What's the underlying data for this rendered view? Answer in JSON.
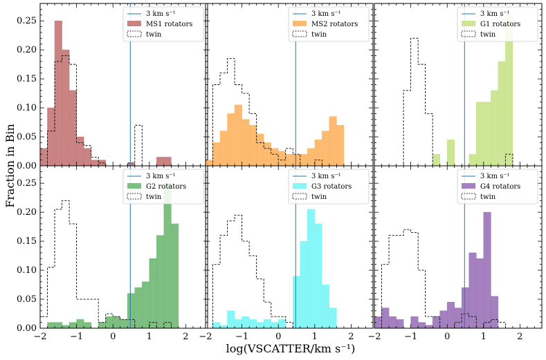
{
  "figure": {
    "xlabel": "log(VSCATTER/km s⁻¹)",
    "ylabel": "Fraction in Bin"
  },
  "chart_data": [
    {
      "type": "bar",
      "title": "",
      "xlim": [
        -2,
        2.6
      ],
      "ylim": [
        0,
        0.28
      ],
      "bin_start": -2.0,
      "bin_width": 0.2,
      "line": {
        "x": 0.477,
        "label": "3 km s⁻¹",
        "color": "#1f77b4"
      },
      "series": [
        {
          "name": "MS1 rotators",
          "style": "filled",
          "color": "#c47676",
          "values": [
            0.03,
            0.1,
            0.25,
            0.2,
            0.13,
            0.05,
            0.03,
            0.01,
            0.01,
            0.0,
            0.0,
            0.0,
            0.005,
            0.0,
            0.0,
            0.0,
            0.015,
            0.015,
            0.0,
            0.0
          ]
        },
        {
          "name": "twin",
          "style": "step",
          "color": "#000000",
          "values": [
            0.0,
            0.06,
            0.18,
            0.19,
            0.175,
            0.04,
            0.035,
            0.015,
            0.005,
            0.0,
            0.0,
            0.0,
            0.005,
            0.07,
            0.0,
            0.0,
            0.0,
            0.0,
            0.0,
            0.0
          ]
        }
      ]
    },
    {
      "type": "bar",
      "title": "",
      "xlim": [
        -2,
        2.6
      ],
      "ylim": [
        0,
        0.28
      ],
      "bin_start": -2.0,
      "bin_width": 0.2,
      "line": {
        "x": 0.477,
        "label": "3 km s⁻¹",
        "color": "#1f77b4"
      },
      "series": [
        {
          "name": "MS2 rotators",
          "style": "filled",
          "color": "#fdb462",
          "values": [
            0.01,
            0.04,
            0.06,
            0.09,
            0.105,
            0.08,
            0.07,
            0.055,
            0.04,
            0.03,
            0.025,
            0.02,
            0.02,
            0.02,
            0.03,
            0.045,
            0.06,
            0.085,
            0.07,
            0.0
          ]
        },
        {
          "name": "twin",
          "style": "step",
          "color": "#000000",
          "values": [
            0.0,
            0.14,
            0.16,
            0.185,
            0.14,
            0.125,
            0.09,
            0.04,
            0.03,
            0.02,
            0.01,
            0.03,
            0.02,
            0.0,
            0.0,
            0.01,
            0.0,
            0.0,
            0.0,
            0.0
          ]
        }
      ]
    },
    {
      "type": "bar",
      "title": "",
      "xlim": [
        -2,
        2.6
      ],
      "ylim": [
        0,
        0.28
      ],
      "bin_start": -2.0,
      "bin_width": 0.2,
      "line": {
        "x": 0.477,
        "label": "3 km s⁻¹",
        "color": "#1f77b4"
      },
      "series": [
        {
          "name": "G1 rotators",
          "style": "filled",
          "color": "#c8e38a",
          "values": [
            0.0,
            0.0,
            0.0,
            0.0,
            0.0,
            0.0,
            0.0,
            0.0,
            0.02,
            0.0,
            0.045,
            0.0,
            0.0,
            0.02,
            0.11,
            0.11,
            0.13,
            0.18,
            0.26,
            0.0
          ]
        },
        {
          "name": "twin",
          "style": "step",
          "color": "#000000",
          "values": [
            0.0,
            0.0,
            0.0,
            0.0,
            0.13,
            0.22,
            0.175,
            0.09,
            0.0,
            0.0,
            0.0,
            0.0,
            0.0,
            0.0,
            0.0,
            0.0,
            0.0,
            0.0,
            0.02,
            0.0
          ]
        }
      ]
    },
    {
      "type": "bar",
      "title": "",
      "xlim": [
        -2,
        2.6
      ],
      "ylim": [
        0,
        0.28
      ],
      "bin_start": -2.0,
      "bin_width": 0.2,
      "line": {
        "x": 0.477,
        "label": "3 km s⁻¹",
        "color": "#1f77b4"
      },
      "series": [
        {
          "name": "G2 rotators",
          "style": "filled",
          "color": "#6fb872",
          "values": [
            0.0,
            0.01,
            0.01,
            0.005,
            0.01,
            0.015,
            0.01,
            0.0,
            0.01,
            0.02,
            0.02,
            0.015,
            0.06,
            0.07,
            0.08,
            0.12,
            0.16,
            0.25,
            0.18,
            0.0
          ]
        },
        {
          "name": "twin",
          "style": "step",
          "color": "#000000",
          "values": [
            0.02,
            0.105,
            0.205,
            0.22,
            0.18,
            0.05,
            0.05,
            0.05,
            0.01,
            0.025,
            0.02,
            0.015,
            0.015,
            0.0,
            0.0,
            0.01,
            0.0,
            0.01,
            0.0,
            0.0
          ]
        }
      ]
    },
    {
      "type": "bar",
      "title": "",
      "xlim": [
        -2,
        2.6
      ],
      "ylim": [
        0,
        0.28
      ],
      "bin_start": -2.0,
      "bin_width": 0.2,
      "line": {
        "x": 0.477,
        "label": "3 km s⁻¹",
        "color": "#1f77b4"
      },
      "series": [
        {
          "name": "G3 rotators",
          "style": "filled",
          "color": "#79f5f5",
          "values": [
            0.0,
            0.01,
            0.005,
            0.03,
            0.015,
            0.02,
            0.015,
            0.01,
            0.015,
            0.01,
            0.015,
            0.0,
            0.09,
            0.15,
            0.205,
            0.18,
            0.075,
            0.035,
            0.0,
            0.0
          ]
        },
        {
          "name": "twin",
          "style": "step",
          "color": "#000000",
          "values": [
            0.0,
            0.11,
            0.16,
            0.185,
            0.195,
            0.15,
            0.125,
            0.085,
            0.045,
            0.02,
            0.02,
            0.01,
            0.0,
            0.0,
            0.0,
            0.0,
            0.0,
            0.0,
            0.0,
            0.0
          ]
        }
      ]
    },
    {
      "type": "bar",
      "title": "",
      "xlim": [
        -2,
        2.6
      ],
      "ylim": [
        0,
        0.28
      ],
      "bin_start": -2.0,
      "bin_width": 0.2,
      "line": {
        "x": 0.477,
        "label": "3 km s⁻¹",
        "color": "#1f77b4"
      },
      "series": [
        {
          "name": "G4 rotators",
          "style": "filled",
          "color": "#9b72b8",
          "values": [
            0.02,
            0.035,
            0.02,
            0.015,
            0.0,
            0.02,
            0.01,
            0.005,
            0.02,
            0.03,
            0.045,
            0.035,
            0.07,
            0.13,
            0.12,
            0.2,
            0.055,
            0.0,
            0.0,
            0.0
          ]
        },
        {
          "name": "twin",
          "style": "step",
          "color": "#000000",
          "values": [
            0.0,
            0.11,
            0.16,
            0.16,
            0.17,
            0.165,
            0.1,
            0.02,
            0.02,
            0.0,
            0.0,
            0.01,
            0.025,
            0.02,
            0.0,
            0.01,
            0.015,
            0.01,
            0.0,
            0.0
          ]
        }
      ]
    }
  ],
  "axes": {
    "x_ticks": [
      -2,
      -1,
      0,
      1,
      2
    ],
    "x_tick_labels": [
      "−2",
      "−1",
      "0",
      "1",
      "2"
    ],
    "y_ticks": [
      0.0,
      0.05,
      0.1,
      0.15,
      0.2,
      0.25
    ],
    "y_tick_labels": [
      "0.00",
      "0.05",
      "0.10",
      "0.15",
      "0.20",
      "0.25"
    ]
  }
}
